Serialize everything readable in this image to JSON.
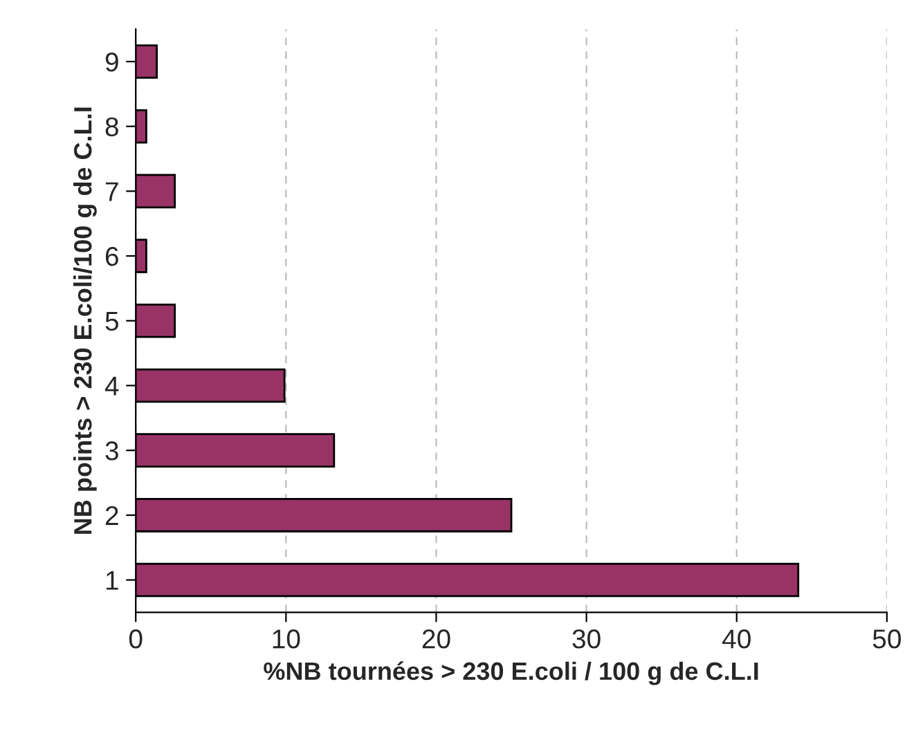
{
  "chart_data": {
    "type": "bar",
    "orientation": "horizontal",
    "xlabel": "%NB tournées > 230 E.coli / 100 g de C.L.I",
    "ylabel": "NB points > 230 E.coli/100 g de C.L.I",
    "categories": [
      "9",
      "8",
      "7",
      "6",
      "5",
      "4",
      "3",
      "2",
      "1"
    ],
    "values": [
      1.4,
      0.7,
      2.6,
      0.7,
      2.6,
      9.9,
      13.2,
      25.0,
      44.1
    ],
    "color": "#993366",
    "xlim": [
      0,
      50
    ],
    "xticks": [
      0,
      10,
      20,
      30,
      40,
      50
    ],
    "grid": "x"
  }
}
